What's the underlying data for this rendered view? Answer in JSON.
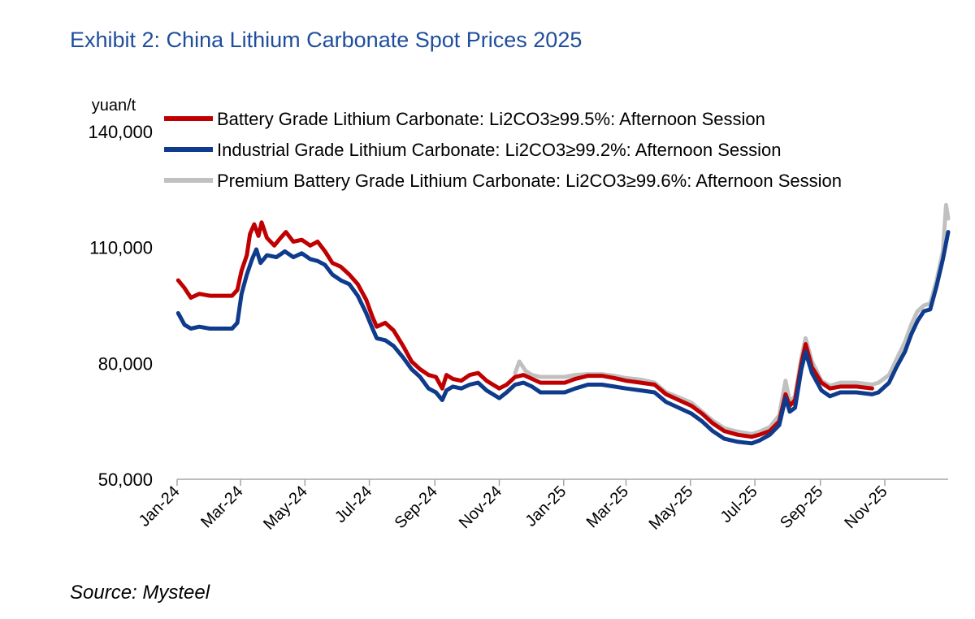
{
  "title": "Exhibit 2: China Lithium Carbonate Spot Prices 2025",
  "source": "Source: Mysteel",
  "colors": {
    "title": "#1f4e9c",
    "battery": "#c00000",
    "industrial": "#0f3b8c",
    "premium": "#c0c0c0",
    "axis": "#a6a6a6"
  },
  "chart_data": {
    "type": "line",
    "unit_label": "yuan/t",
    "ylim": [
      50000,
      140000
    ],
    "yticks": [
      50000,
      80000,
      110000,
      140000
    ],
    "ytick_labels": [
      "50,000",
      "80,000",
      "110,000",
      "140,000"
    ],
    "xticks": [
      "2024-01-01",
      "2024-03-01",
      "2024-05-01",
      "2024-07-01",
      "2024-09-01",
      "2024-11-01",
      "2025-01-01",
      "2025-03-01",
      "2025-05-01",
      "2025-07-01",
      "2025-09-01",
      "2025-11-01"
    ],
    "xtick_labels": [
      "Jan-24",
      "Mar-24",
      "May-24",
      "Jul-24",
      "Sep-24",
      "Nov-24",
      "Jan-25",
      "Mar-25",
      "May-25",
      "Jul-25",
      "Sep-25",
      "Nov-25"
    ],
    "grid": false,
    "legend_position": "top-left",
    "series": [
      {
        "name": "Battery Grade Lithium Carbonate: Li2CO3≥99.5%: Afternoon Session",
        "color": "#c00000",
        "points": [
          [
            "2024-01-02",
            101500
          ],
          [
            "2024-01-08",
            99500
          ],
          [
            "2024-01-14",
            97000
          ],
          [
            "2024-01-22",
            98000
          ],
          [
            "2024-02-01",
            97500
          ],
          [
            "2024-02-15",
            97500
          ],
          [
            "2024-02-22",
            97500
          ],
          [
            "2024-02-27",
            99000
          ],
          [
            "2024-03-02",
            104000
          ],
          [
            "2024-03-07",
            108000
          ],
          [
            "2024-03-10",
            113500
          ],
          [
            "2024-03-14",
            116000
          ],
          [
            "2024-03-18",
            113000
          ],
          [
            "2024-03-21",
            116500
          ],
          [
            "2024-03-26",
            112500
          ],
          [
            "2024-04-02",
            110500
          ],
          [
            "2024-04-08",
            112500
          ],
          [
            "2024-04-13",
            114000
          ],
          [
            "2024-04-20",
            111500
          ],
          [
            "2024-04-28",
            112000
          ],
          [
            "2024-05-06",
            110500
          ],
          [
            "2024-05-13",
            111500
          ],
          [
            "2024-05-20",
            109000
          ],
          [
            "2024-05-27",
            106000
          ],
          [
            "2024-06-04",
            105000
          ],
          [
            "2024-06-12",
            103000
          ],
          [
            "2024-06-20",
            100500
          ],
          [
            "2024-06-28",
            96500
          ],
          [
            "2024-07-04",
            92000
          ],
          [
            "2024-07-08",
            89500
          ],
          [
            "2024-07-16",
            90500
          ],
          [
            "2024-07-24",
            88500
          ],
          [
            "2024-08-02",
            84500
          ],
          [
            "2024-08-10",
            80500
          ],
          [
            "2024-08-18",
            78500
          ],
          [
            "2024-08-26",
            77000
          ],
          [
            "2024-09-02",
            76500
          ],
          [
            "2024-09-08",
            73500
          ],
          [
            "2024-09-12",
            77000
          ],
          [
            "2024-09-18",
            76000
          ],
          [
            "2024-09-26",
            75500
          ],
          [
            "2024-10-04",
            77000
          ],
          [
            "2024-10-12",
            77500
          ],
          [
            "2024-10-20",
            75500
          ],
          [
            "2024-10-26",
            74500
          ],
          [
            "2024-11-01",
            73500
          ],
          [
            "2024-11-08",
            74500
          ],
          [
            "2024-11-16",
            76500
          ],
          [
            "2024-11-24",
            77000
          ],
          [
            "2024-12-02",
            76000
          ],
          [
            "2024-12-10",
            75000
          ],
          [
            "2024-12-20",
            75000
          ],
          [
            "2025-01-02",
            75000
          ],
          [
            "2025-01-12",
            76000
          ],
          [
            "2025-01-24",
            76800
          ],
          [
            "2025-02-06",
            76800
          ],
          [
            "2025-02-18",
            76200
          ],
          [
            "2025-03-01",
            75500
          ],
          [
            "2025-03-15",
            75000
          ],
          [
            "2025-03-28",
            74500
          ],
          [
            "2025-04-08",
            72000
          ],
          [
            "2025-04-20",
            70500
          ],
          [
            "2025-05-02",
            69000
          ],
          [
            "2025-05-12",
            67000
          ],
          [
            "2025-05-22",
            64500
          ],
          [
            "2025-06-02",
            62500
          ],
          [
            "2025-06-15",
            61500
          ],
          [
            "2025-06-28",
            61000
          ],
          [
            "2025-07-05",
            61500
          ],
          [
            "2025-07-15",
            62500
          ],
          [
            "2025-07-24",
            65000
          ],
          [
            "2025-07-30",
            72000
          ],
          [
            "2025-08-03",
            69000
          ],
          [
            "2025-08-08",
            70500
          ],
          [
            "2025-08-14",
            80000
          ],
          [
            "2025-08-18",
            85000
          ],
          [
            "2025-08-24",
            79000
          ],
          [
            "2025-09-02",
            75000
          ],
          [
            "2025-09-10",
            73500
          ],
          [
            "2025-09-20",
            74000
          ],
          [
            "2025-10-05",
            74000
          ],
          [
            "2025-10-20",
            73500
          ]
        ]
      },
      {
        "name": "Industrial Grade Lithium Carbonate: Li2CO3≥99.2%: Afternoon Session",
        "color": "#0f3b8c",
        "points": [
          [
            "2024-01-02",
            93000
          ],
          [
            "2024-01-08",
            90000
          ],
          [
            "2024-01-14",
            89000
          ],
          [
            "2024-01-22",
            89500
          ],
          [
            "2024-02-01",
            89000
          ],
          [
            "2024-02-15",
            89000
          ],
          [
            "2024-02-22",
            89000
          ],
          [
            "2024-02-27",
            90500
          ],
          [
            "2024-03-02",
            98000
          ],
          [
            "2024-03-07",
            103000
          ],
          [
            "2024-03-12",
            107000
          ],
          [
            "2024-03-16",
            109500
          ],
          [
            "2024-03-20",
            106000
          ],
          [
            "2024-03-26",
            108000
          ],
          [
            "2024-04-04",
            107500
          ],
          [
            "2024-04-12",
            109000
          ],
          [
            "2024-04-20",
            107500
          ],
          [
            "2024-04-28",
            108500
          ],
          [
            "2024-05-06",
            107000
          ],
          [
            "2024-05-13",
            106500
          ],
          [
            "2024-05-20",
            105500
          ],
          [
            "2024-05-27",
            103000
          ],
          [
            "2024-06-04",
            101500
          ],
          [
            "2024-06-12",
            100500
          ],
          [
            "2024-06-20",
            97500
          ],
          [
            "2024-06-28",
            93000
          ],
          [
            "2024-07-04",
            89000
          ],
          [
            "2024-07-08",
            86500
          ],
          [
            "2024-07-16",
            86000
          ],
          [
            "2024-07-24",
            84500
          ],
          [
            "2024-08-02",
            81500
          ],
          [
            "2024-08-10",
            78500
          ],
          [
            "2024-08-18",
            76500
          ],
          [
            "2024-08-26",
            73500
          ],
          [
            "2024-09-02",
            72500
          ],
          [
            "2024-09-08",
            70500
          ],
          [
            "2024-09-12",
            73000
          ],
          [
            "2024-09-18",
            74000
          ],
          [
            "2024-09-26",
            73500
          ],
          [
            "2024-10-04",
            74500
          ],
          [
            "2024-10-12",
            75000
          ],
          [
            "2024-10-20",
            73000
          ],
          [
            "2024-10-26",
            72000
          ],
          [
            "2024-11-01",
            71000
          ],
          [
            "2024-11-08",
            72500
          ],
          [
            "2024-11-16",
            74500
          ],
          [
            "2024-11-24",
            75000
          ],
          [
            "2024-12-02",
            74000
          ],
          [
            "2024-12-10",
            72500
          ],
          [
            "2024-12-20",
            72500
          ],
          [
            "2025-01-02",
            72500
          ],
          [
            "2025-01-12",
            73500
          ],
          [
            "2025-01-24",
            74500
          ],
          [
            "2025-02-06",
            74500
          ],
          [
            "2025-02-18",
            74000
          ],
          [
            "2025-03-01",
            73500
          ],
          [
            "2025-03-15",
            73000
          ],
          [
            "2025-03-28",
            72500
          ],
          [
            "2025-04-08",
            70000
          ],
          [
            "2025-04-20",
            68500
          ],
          [
            "2025-05-02",
            67000
          ],
          [
            "2025-05-12",
            65000
          ],
          [
            "2025-05-22",
            62500
          ],
          [
            "2025-06-02",
            60500
          ],
          [
            "2025-06-15",
            59700
          ],
          [
            "2025-06-28",
            59300
          ],
          [
            "2025-07-05",
            60000
          ],
          [
            "2025-07-15",
            61500
          ],
          [
            "2025-07-24",
            64000
          ],
          [
            "2025-07-30",
            71000
          ],
          [
            "2025-08-03",
            67500
          ],
          [
            "2025-08-08",
            68500
          ],
          [
            "2025-08-14",
            78500
          ],
          [
            "2025-08-18",
            83000
          ],
          [
            "2025-08-24",
            77500
          ],
          [
            "2025-09-02",
            73000
          ],
          [
            "2025-09-10",
            71500
          ],
          [
            "2025-09-20",
            72500
          ],
          [
            "2025-10-05",
            72500
          ],
          [
            "2025-10-20",
            72000
          ],
          [
            "2025-10-26",
            72500
          ],
          [
            "2025-11-05",
            75000
          ],
          [
            "2025-11-12",
            79000
          ],
          [
            "2025-11-20",
            83000
          ],
          [
            "2025-11-26",
            87500
          ],
          [
            "2025-12-02",
            91000
          ],
          [
            "2025-12-08",
            93500
          ],
          [
            "2025-12-14",
            94000
          ],
          [
            "2025-12-20",
            100000
          ],
          [
            "2025-12-26",
            107000
          ],
          [
            "2025-12-31",
            114000
          ]
        ]
      },
      {
        "name": "Premium Battery Grade Lithium Carbonate: Li2CO3≥99.6%: Afternoon Session",
        "color": "#c0c0c0",
        "points": [
          [
            "2024-11-16",
            77500
          ],
          [
            "2024-11-20",
            80500
          ],
          [
            "2024-11-26",
            78000
          ],
          [
            "2024-12-02",
            77000
          ],
          [
            "2024-12-10",
            76500
          ],
          [
            "2024-12-20",
            76500
          ],
          [
            "2025-01-02",
            76500
          ],
          [
            "2025-01-12",
            77000
          ],
          [
            "2025-01-24",
            77200
          ],
          [
            "2025-02-06",
            77200
          ],
          [
            "2025-02-18",
            76800
          ],
          [
            "2025-03-01",
            76200
          ],
          [
            "2025-03-15",
            75800
          ],
          [
            "2025-03-28",
            75000
          ],
          [
            "2025-04-08",
            72500
          ],
          [
            "2025-04-20",
            71200
          ],
          [
            "2025-05-02",
            69800
          ],
          [
            "2025-05-12",
            67500
          ],
          [
            "2025-05-22",
            65200
          ],
          [
            "2025-06-02",
            63200
          ],
          [
            "2025-06-15",
            62300
          ],
          [
            "2025-06-28",
            61700
          ],
          [
            "2025-07-05",
            62300
          ],
          [
            "2025-07-15",
            63500
          ],
          [
            "2025-07-24",
            66500
          ],
          [
            "2025-07-30",
            75500
          ],
          [
            "2025-08-03",
            70000
          ],
          [
            "2025-08-08",
            71500
          ],
          [
            "2025-08-14",
            81500
          ],
          [
            "2025-08-18",
            86500
          ],
          [
            "2025-08-24",
            80500
          ],
          [
            "2025-09-02",
            75500
          ],
          [
            "2025-09-10",
            74200
          ],
          [
            "2025-09-20",
            75000
          ],
          [
            "2025-10-05",
            75000
          ],
          [
            "2025-10-20",
            74500
          ],
          [
            "2025-10-26",
            75000
          ],
          [
            "2025-11-05",
            77000
          ],
          [
            "2025-11-12",
            81000
          ],
          [
            "2025-11-20",
            85500
          ],
          [
            "2025-11-26",
            90000
          ],
          [
            "2025-12-02",
            93500
          ],
          [
            "2025-12-08",
            95000
          ],
          [
            "2025-12-14",
            95500
          ],
          [
            "2025-12-20",
            101500
          ],
          [
            "2025-12-26",
            109000
          ],
          [
            "2025-12-29",
            121000
          ],
          [
            "2025-12-31",
            117500
          ]
        ]
      }
    ]
  }
}
